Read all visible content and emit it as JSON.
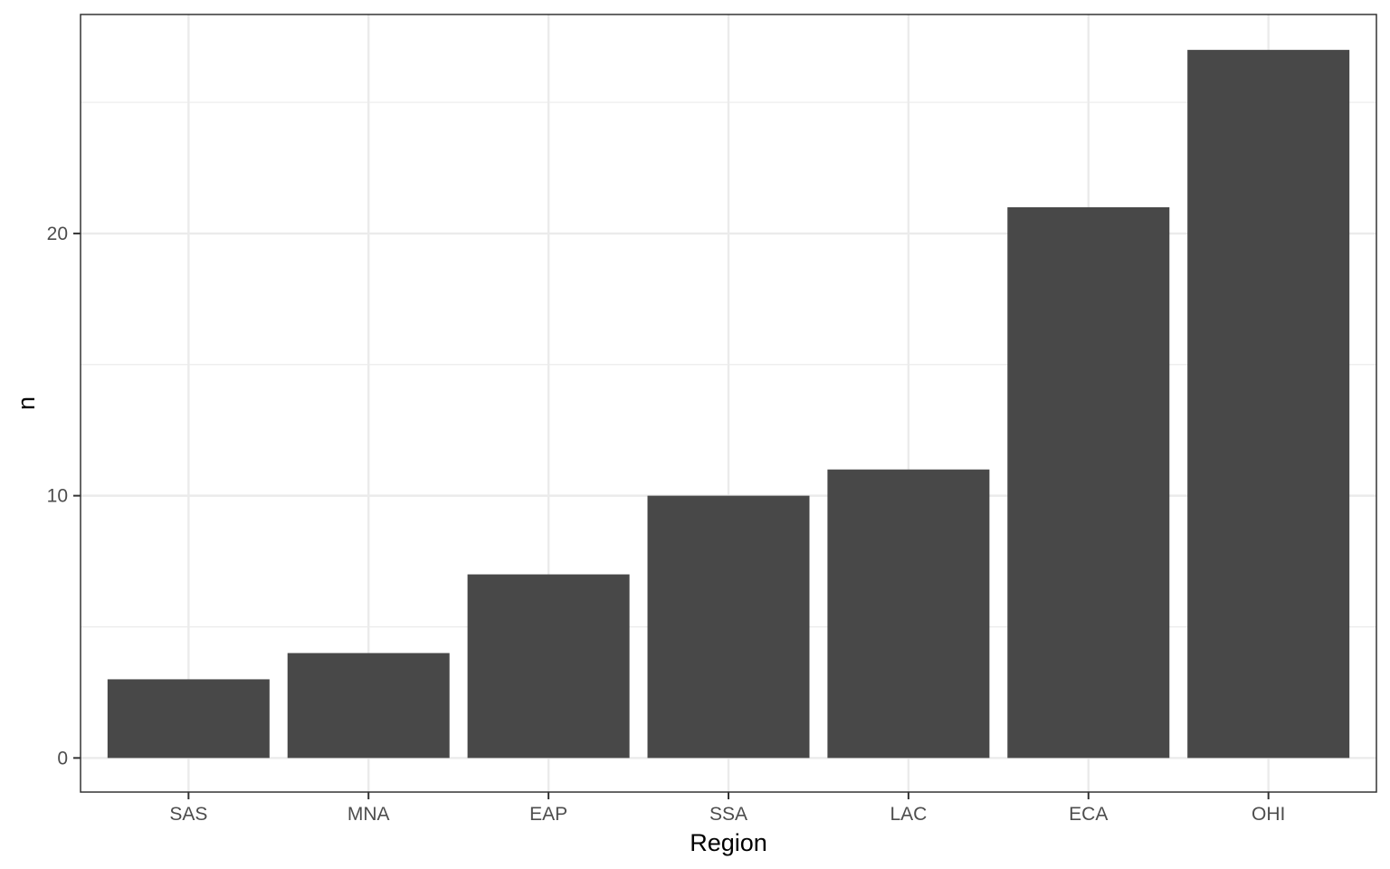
{
  "chart_data": {
    "type": "bar",
    "title": "",
    "xlabel": "Region",
    "ylabel": "n",
    "categories": [
      "SAS",
      "MNA",
      "EAP",
      "SSA",
      "LAC",
      "ECA",
      "OHI"
    ],
    "values": [
      3,
      4,
      7,
      10,
      11,
      21,
      27
    ],
    "ylim": [
      -1.3,
      28.35
    ],
    "yticks": [
      0,
      10,
      20
    ],
    "yticklabels": [
      "0",
      "10",
      "20"
    ],
    "y_minor_ticks": [
      5,
      15,
      25
    ],
    "grid": true,
    "legend": "none",
    "bar_color": "#484848",
    "grid_color": "#ebebeb",
    "panel_border_color": "#333333"
  }
}
